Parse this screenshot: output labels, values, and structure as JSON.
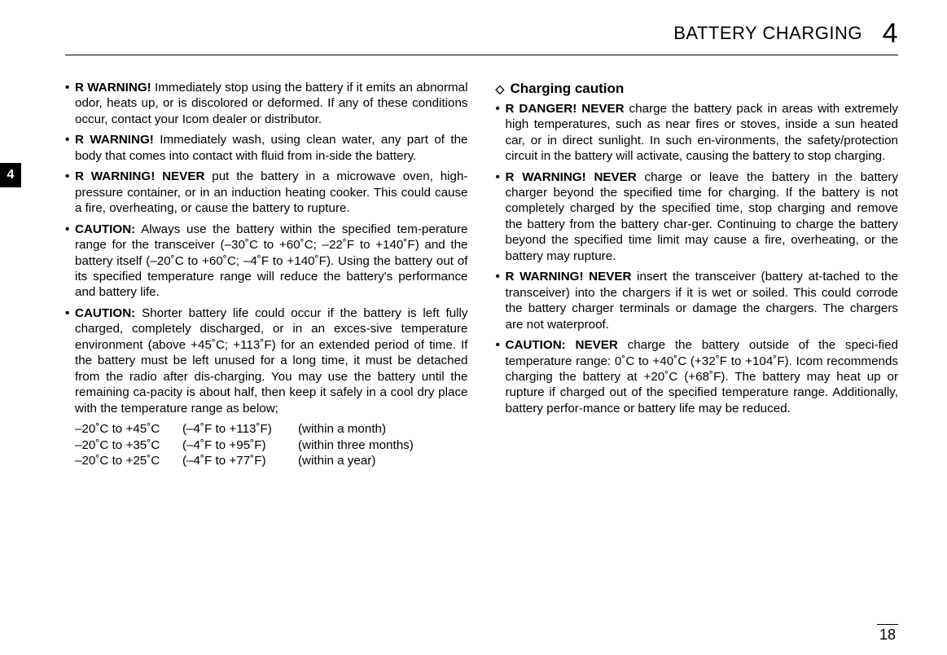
{
  "header": {
    "title": "BATTERY CHARGING",
    "chapter": "4"
  },
  "sideTab": "4",
  "pageNumber": "18",
  "leftColumn": {
    "items": [
      {
        "prefix": "• ",
        "lead": "R WARNING!",
        "text": " Immediately stop using the battery if it emits an abnormal odor, heats up, or is discolored or deformed. If any of these conditions occur, contact your Icom dealer or distributor."
      },
      {
        "prefix": "• ",
        "lead": "R WARNING!",
        "text": " Immediately wash, using clean water, any part of the body that comes into contact with fluid from in-side the battery."
      },
      {
        "prefix": "• ",
        "lead": "R WARNING! NEVER",
        "text": " put the battery in a microwave oven, high-pressure container, or in an induction heating cooker. This could cause a fire, overheating, or cause the battery to rupture."
      },
      {
        "prefix": "• ",
        "lead": "CAUTION:",
        "text": " Always use the battery within the specified tem-perature range for the transceiver (–30˚C to +60˚C; –22˚F to +140˚F) and the battery itself (–20˚C to +60˚C; –4˚F to +140˚F). Using the battery out of its specified temperature range will reduce the battery's performance and battery life."
      },
      {
        "prefix": "• ",
        "lead": "CAUTION:",
        "text": " Shorter battery life could occur if the battery is left fully charged, completely discharged, or in an exces-sive temperature environment (above +45˚C; +113˚F) for an extended period of time. If the battery must be left unused for a long time, it must be detached from the radio after dis-charging. You may use the battery until the remaining ca-pacity is about half, then keep it safely in a cool dry place with the temperature range as below;"
      }
    ],
    "tempTable": [
      {
        "c": "–20˚C to +45˚C",
        "f": "(–4˚F to +113˚F)",
        "d": "(within a month)"
      },
      {
        "c": "–20˚C to +35˚C",
        "f": "(–4˚F to +95˚F)",
        "d": "(within three months)"
      },
      {
        "c": "–20˚C to +25˚C",
        "f": "(–4˚F to +77˚F)",
        "d": "(within a year)"
      }
    ]
  },
  "rightColumn": {
    "subheading": "Charging caution",
    "items": [
      {
        "prefix": "• ",
        "lead": "R DANGER! NEVER",
        "text": " charge the battery pack in areas with extremely high temperatures, such as near fires or stoves, inside a sun heated car, or in direct sunlight. In such en-vironments, the safety/protection circuit in the battery will activate, causing the battery to stop charging."
      },
      {
        "prefix": "• ",
        "lead": "R WARNING! NEVER",
        "text": " charge or leave the battery in the battery charger beyond the specified time for charging. If the battery is not completely charged by the specified time, stop charging and remove the battery from the battery char-ger. Continuing to charge the battery beyond the specified time limit may cause a fire, overheating, or the battery may rupture."
      },
      {
        "prefix": "• ",
        "lead": "R WARNING! NEVER",
        "text": " insert the transceiver (battery at-tached to the transceiver) into the chargers if it is wet or soiled. This could corrode the battery charger terminals or damage the chargers. The chargers are not waterproof."
      },
      {
        "prefix": "• ",
        "lead": "CAUTION: NEVER",
        "text": " charge the battery outside of the speci-fied temperature range: 0˚C to +40˚C (+32˚F to +104˚F). Icom recommends charging the battery at +20˚C (+68˚F). The battery may heat up or rupture if charged out of the specified temperature range. Additionally, battery perfor-mance or battery life may be reduced."
      }
    ]
  }
}
